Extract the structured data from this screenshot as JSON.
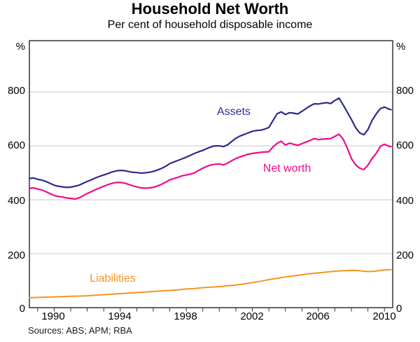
{
  "chart_data": {
    "type": "line",
    "title": "Household Net Worth",
    "subtitle": "Per cent of household disposable income",
    "sources": "Sources: ABS; APM; RBA",
    "xlabel": "",
    "ylabel": "%",
    "xlim": [
      1988.5,
      2010.5
    ],
    "ylim": [
      0,
      990
    ],
    "grid": true,
    "legend_position": "inline-labels",
    "y_ticks": [
      0,
      200,
      400,
      600,
      800
    ],
    "x_tick_labels": [
      "1990",
      "1994",
      "1998",
      "2002",
      "2006",
      "2010"
    ],
    "x_minor_tick_start": 1989,
    "x_minor_tick_end": 2010,
    "colors": {
      "axis": "#333333",
      "grid": "#c9c9c9"
    },
    "series": [
      {
        "name": "Assets",
        "color": "#2b2b8e",
        "width": 2.2,
        "points": [
          [
            1988.5,
            479
          ],
          [
            1988.75,
            481
          ],
          [
            1989,
            476
          ],
          [
            1989.25,
            473
          ],
          [
            1989.5,
            468
          ],
          [
            1989.75,
            461
          ],
          [
            1990,
            454
          ],
          [
            1990.25,
            450
          ],
          [
            1990.5,
            448
          ],
          [
            1990.75,
            446
          ],
          [
            1991,
            447
          ],
          [
            1991.25,
            450
          ],
          [
            1991.5,
            454
          ],
          [
            1991.75,
            461
          ],
          [
            1992,
            468
          ],
          [
            1992.25,
            474
          ],
          [
            1992.5,
            481
          ],
          [
            1992.75,
            487
          ],
          [
            1993,
            492
          ],
          [
            1993.25,
            497
          ],
          [
            1993.5,
            503
          ],
          [
            1993.75,
            507
          ],
          [
            1994,
            509
          ],
          [
            1994.25,
            508
          ],
          [
            1994.5,
            505
          ],
          [
            1994.75,
            502
          ],
          [
            1995,
            501
          ],
          [
            1995.25,
            499
          ],
          [
            1995.5,
            500
          ],
          [
            1995.75,
            502
          ],
          [
            1996,
            505
          ],
          [
            1996.25,
            510
          ],
          [
            1996.5,
            516
          ],
          [
            1996.75,
            524
          ],
          [
            1997,
            534
          ],
          [
            1997.25,
            540
          ],
          [
            1997.5,
            546
          ],
          [
            1997.75,
            552
          ],
          [
            1998,
            558
          ],
          [
            1998.25,
            565
          ],
          [
            1998.5,
            572
          ],
          [
            1998.75,
            578
          ],
          [
            1999,
            583
          ],
          [
            1999.25,
            590
          ],
          [
            1999.5,
            596
          ],
          [
            1999.75,
            600
          ],
          [
            2000,
            600
          ],
          [
            2000.25,
            597
          ],
          [
            2000.5,
            604
          ],
          [
            2000.75,
            616
          ],
          [
            2001,
            628
          ],
          [
            2001.25,
            636
          ],
          [
            2001.5,
            642
          ],
          [
            2001.75,
            648
          ],
          [
            2002,
            654
          ],
          [
            2002.25,
            657
          ],
          [
            2002.5,
            658
          ],
          [
            2002.75,
            662
          ],
          [
            2003,
            668
          ],
          [
            2003.25,
            694
          ],
          [
            2003.5,
            719
          ],
          [
            2003.75,
            726
          ],
          [
            2004,
            716
          ],
          [
            2004.25,
            723
          ],
          [
            2004.5,
            721
          ],
          [
            2004.75,
            718
          ],
          [
            2005,
            728
          ],
          [
            2005.25,
            738
          ],
          [
            2005.5,
            748
          ],
          [
            2005.75,
            756
          ],
          [
            2006,
            755
          ],
          [
            2006.25,
            758
          ],
          [
            2006.5,
            760
          ],
          [
            2006.75,
            757
          ],
          [
            2007,
            768
          ],
          [
            2007.25,
            777
          ],
          [
            2007.5,
            752
          ],
          [
            2007.75,
            725
          ],
          [
            2008,
            698
          ],
          [
            2008.25,
            668
          ],
          [
            2008.5,
            648
          ],
          [
            2008.75,
            641
          ],
          [
            2009,
            660
          ],
          [
            2009.25,
            694
          ],
          [
            2009.5,
            718
          ],
          [
            2009.75,
            738
          ],
          [
            2010,
            744
          ],
          [
            2010.25,
            737
          ],
          [
            2010.4,
            734
          ]
        ]
      },
      {
        "name": "Net worth",
        "color": "#ee0d8a",
        "width": 2.2,
        "points": [
          [
            1988.5,
            442
          ],
          [
            1988.75,
            444
          ],
          [
            1989,
            440
          ],
          [
            1989.25,
            436
          ],
          [
            1989.5,
            430
          ],
          [
            1989.75,
            423
          ],
          [
            1990,
            416
          ],
          [
            1990.25,
            412
          ],
          [
            1990.5,
            410
          ],
          [
            1990.75,
            407
          ],
          [
            1991,
            405
          ],
          [
            1991.25,
            403
          ],
          [
            1991.5,
            407
          ],
          [
            1991.75,
            415
          ],
          [
            1992,
            423
          ],
          [
            1992.25,
            430
          ],
          [
            1992.5,
            437
          ],
          [
            1992.75,
            444
          ],
          [
            1993,
            450
          ],
          [
            1993.25,
            456
          ],
          [
            1993.5,
            461
          ],
          [
            1993.75,
            464
          ],
          [
            1994,
            464
          ],
          [
            1994.25,
            462
          ],
          [
            1994.5,
            457
          ],
          [
            1994.75,
            452
          ],
          [
            1995,
            448
          ],
          [
            1995.25,
            444
          ],
          [
            1995.5,
            443
          ],
          [
            1995.75,
            444
          ],
          [
            1996,
            446
          ],
          [
            1996.25,
            451
          ],
          [
            1996.5,
            457
          ],
          [
            1996.75,
            465
          ],
          [
            1997,
            474
          ],
          [
            1997.25,
            479
          ],
          [
            1997.5,
            483
          ],
          [
            1997.75,
            489
          ],
          [
            1998,
            492
          ],
          [
            1998.25,
            495
          ],
          [
            1998.5,
            500
          ],
          [
            1998.75,
            509
          ],
          [
            1999,
            517
          ],
          [
            1999.25,
            524
          ],
          [
            1999.5,
            529
          ],
          [
            1999.75,
            532
          ],
          [
            2000,
            533
          ],
          [
            2000.25,
            529
          ],
          [
            2000.5,
            536
          ],
          [
            2000.75,
            545
          ],
          [
            2001,
            553
          ],
          [
            2001.25,
            559
          ],
          [
            2001.5,
            564
          ],
          [
            2001.75,
            569
          ],
          [
            2002,
            572
          ],
          [
            2002.25,
            574
          ],
          [
            2002.5,
            576
          ],
          [
            2002.75,
            577
          ],
          [
            2003,
            578
          ],
          [
            2003.25,
            596
          ],
          [
            2003.5,
            609
          ],
          [
            2003.75,
            617
          ],
          [
            2004,
            603
          ],
          [
            2004.25,
            610
          ],
          [
            2004.5,
            606
          ],
          [
            2004.75,
            602
          ],
          [
            2005,
            608
          ],
          [
            2005.25,
            614
          ],
          [
            2005.5,
            620
          ],
          [
            2005.75,
            627
          ],
          [
            2006,
            623
          ],
          [
            2006.25,
            625
          ],
          [
            2006.5,
            626
          ],
          [
            2006.75,
            627
          ],
          [
            2007,
            635
          ],
          [
            2007.25,
            643
          ],
          [
            2007.5,
            625
          ],
          [
            2007.75,
            592
          ],
          [
            2008,
            553
          ],
          [
            2008.25,
            530
          ],
          [
            2008.5,
            517
          ],
          [
            2008.75,
            512
          ],
          [
            2009,
            528
          ],
          [
            2009.25,
            553
          ],
          [
            2009.5,
            572
          ],
          [
            2009.75,
            598
          ],
          [
            2010,
            606
          ],
          [
            2010.25,
            599
          ],
          [
            2010.4,
            597
          ]
        ]
      },
      {
        "name": "Liabilities",
        "color": "#f7941e",
        "width": 2,
        "points": [
          [
            1988.5,
            37
          ],
          [
            1989,
            38
          ],
          [
            1989.5,
            39
          ],
          [
            1990,
            40
          ],
          [
            1990.5,
            41
          ],
          [
            1991,
            42
          ],
          [
            1991.5,
            43
          ],
          [
            1992,
            44
          ],
          [
            1992.5,
            46
          ],
          [
            1993,
            48
          ],
          [
            1993.5,
            50
          ],
          [
            1994,
            52
          ],
          [
            1994.5,
            54
          ],
          [
            1995,
            56
          ],
          [
            1995.5,
            58
          ],
          [
            1996,
            60
          ],
          [
            1996.5,
            62
          ],
          [
            1997,
            64
          ],
          [
            1997.5,
            66
          ],
          [
            1998,
            69
          ],
          [
            1998.5,
            71
          ],
          [
            1999,
            74
          ],
          [
            1999.5,
            76
          ],
          [
            2000,
            78
          ],
          [
            2000.5,
            81
          ],
          [
            2001,
            84
          ],
          [
            2001.5,
            88
          ],
          [
            2002,
            93
          ],
          [
            2002.5,
            98
          ],
          [
            2003,
            104
          ],
          [
            2003.5,
            109
          ],
          [
            2004,
            114
          ],
          [
            2004.5,
            118
          ],
          [
            2005,
            122
          ],
          [
            2005.5,
            126
          ],
          [
            2006,
            129
          ],
          [
            2006.5,
            132
          ],
          [
            2007,
            135
          ],
          [
            2007.5,
            137
          ],
          [
            2008,
            138
          ],
          [
            2008.25,
            138
          ],
          [
            2008.5,
            137
          ],
          [
            2008.75,
            135
          ],
          [
            2009,
            134
          ],
          [
            2009.25,
            134
          ],
          [
            2009.5,
            136
          ],
          [
            2009.75,
            138
          ],
          [
            2010,
            140
          ],
          [
            2010.4,
            141
          ]
        ]
      }
    ]
  }
}
